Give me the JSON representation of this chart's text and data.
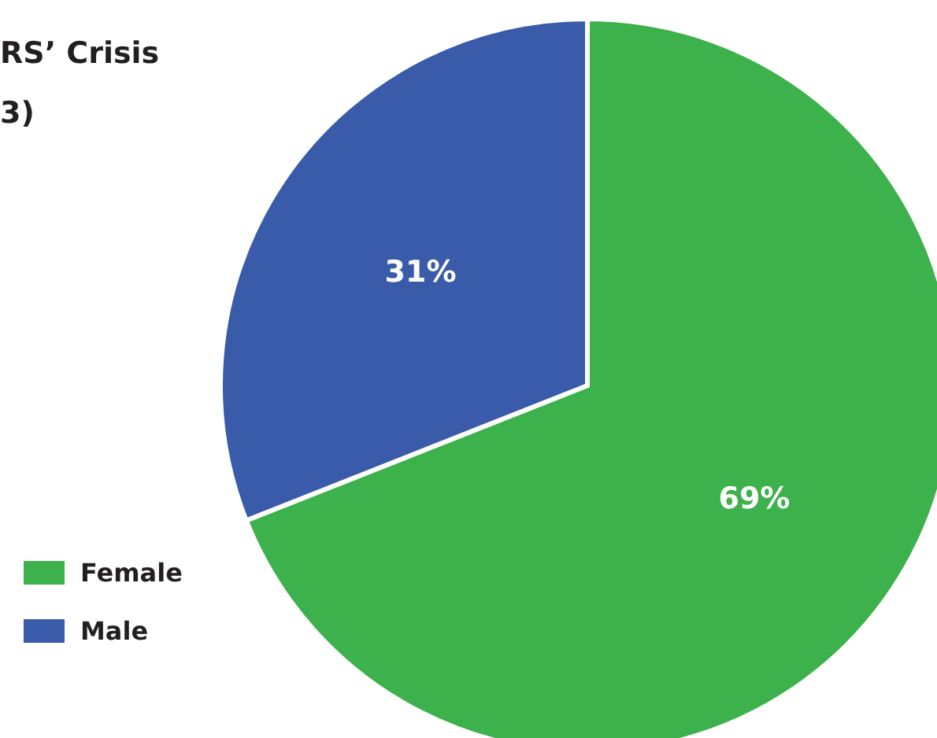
{
  "chart_data": {
    "type": "pie",
    "title": "RS’ Crisis\n3)",
    "categories": [
      "Female",
      "Male"
    ],
    "values": [
      69,
      31
    ],
    "colors": [
      "#3db14b",
      "#395ba9"
    ],
    "value_labels": [
      "69%",
      "31%"
    ],
    "legend": "bottom left"
  }
}
